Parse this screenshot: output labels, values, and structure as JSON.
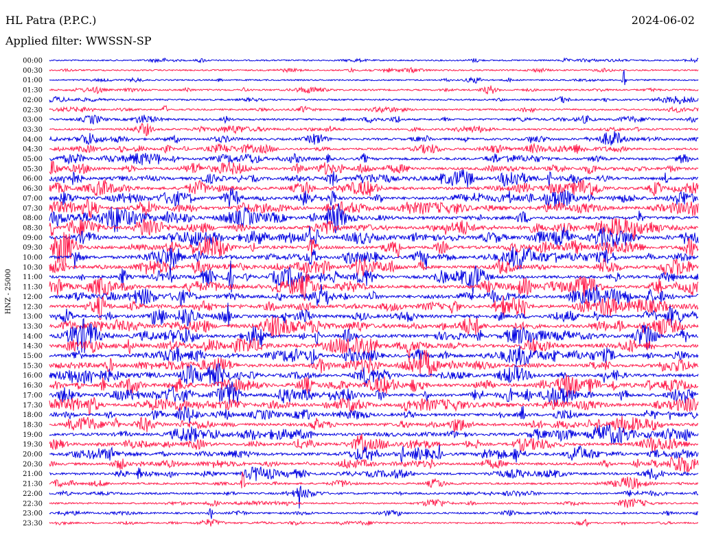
{
  "header": {
    "station": "HL Patra (P.P.C.)",
    "date": "2024-06-02",
    "filter": "Applied filter: WWSSN-SP"
  },
  "chart_data": {
    "type": "line",
    "title": "HL Patra (P.P.C.)",
    "subtitle": "Applied filter: WWSSN-SP",
    "ylabel": "HNZ - 25000",
    "xlabel": "",
    "grid": false,
    "trace_colors": [
      "#0000e0",
      "#ff1a4a"
    ],
    "rows": [
      "00:00",
      "00:30",
      "01:00",
      "01:30",
      "02:00",
      "02:30",
      "03:00",
      "03:30",
      "04:00",
      "04:30",
      "05:00",
      "05:30",
      "06:00",
      "06:30",
      "07:00",
      "07:30",
      "08:00",
      "08:30",
      "09:00",
      "09:30",
      "10:00",
      "10:30",
      "11:00",
      "11:30",
      "12:00",
      "12:30",
      "13:00",
      "13:30",
      "14:00",
      "14:30",
      "15:00",
      "15:30",
      "16:00",
      "16:30",
      "17:00",
      "17:30",
      "18:00",
      "18:30",
      "19:00",
      "19:30",
      "20:00",
      "20:30",
      "21:00",
      "21:30",
      "22:00",
      "22:30",
      "23:00",
      "23:30"
    ],
    "activity": [
      1,
      1,
      1,
      2,
      2,
      2,
      3,
      3,
      4,
      4,
      5,
      5,
      6,
      6,
      6,
      7,
      7,
      7,
      7,
      7,
      7,
      7,
      7,
      7,
      7,
      7,
      7,
      7,
      7,
      7,
      7,
      7,
      7,
      7,
      7,
      7,
      6,
      6,
      6,
      6,
      6,
      5,
      4,
      3,
      3,
      2,
      2,
      2
    ]
  }
}
